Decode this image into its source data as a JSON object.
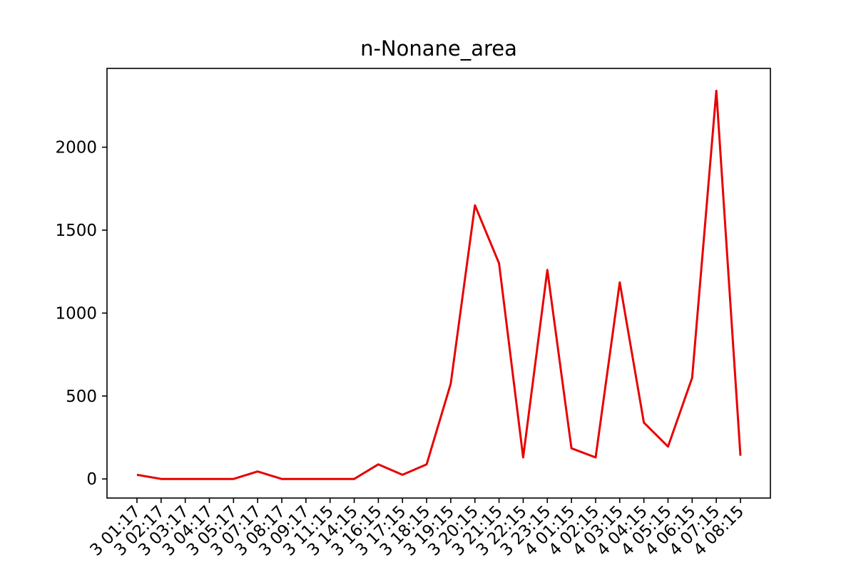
{
  "chart_data": {
    "type": "line",
    "title": "n-Nonane_area",
    "xlabel": "",
    "ylabel": "",
    "ylim": [
      -115,
      2475
    ],
    "yticks": [
      0,
      500,
      1000,
      1500,
      2000
    ],
    "x": [
      "3 01:17",
      "3 02:17",
      "3 03:17",
      "3 04:17",
      "3 05:17",
      "3 07:17",
      "3 08:17",
      "3 09:17",
      "3 11:15",
      "3 14:15",
      "3 16:15",
      "3 17:15",
      "3 18:15",
      "3 19:15",
      "3 20:15",
      "3 21:15",
      "3 22:15",
      "3 23:15",
      "4 01:15",
      "4 02:15",
      "4 03:15",
      "4 04:15",
      "4 05:15",
      "4 06:15",
      "4 07:15",
      "4 08:15"
    ],
    "series": [
      {
        "color": "#e80000",
        "values": [
          25,
          0,
          0,
          0,
          0,
          45,
          0,
          0,
          0,
          0,
          88,
          25,
          88,
          575,
          1650,
          1300,
          130,
          1260,
          185,
          130,
          1185,
          340,
          195,
          610,
          2340,
          140
        ]
      }
    ],
    "grid": false,
    "legend": "none"
  }
}
